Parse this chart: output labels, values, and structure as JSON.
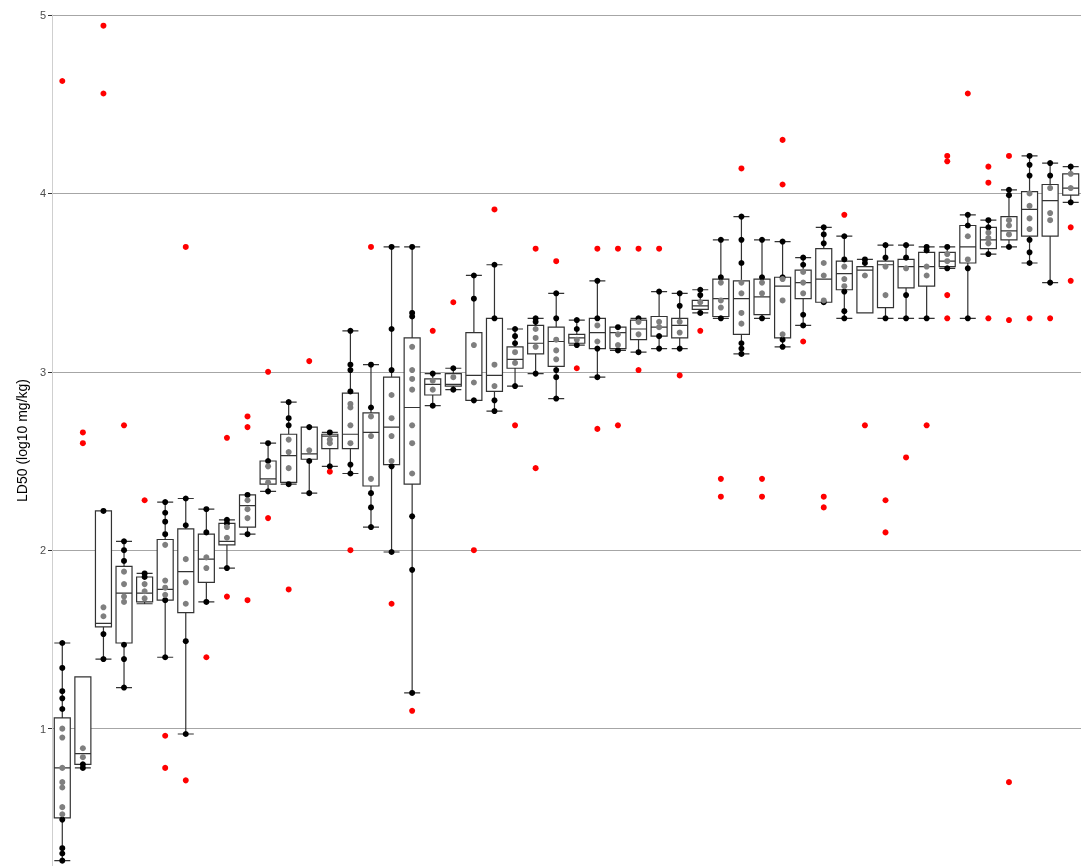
{
  "chart_data": {
    "type": "box",
    "ylabel": "LD50 (log10 mg/kg)",
    "categories": [
      null,
      null,
      null,
      null,
      null,
      null,
      null,
      null,
      null,
      null,
      null,
      null,
      null,
      null,
      null,
      null,
      null,
      null,
      null,
      null,
      null,
      null,
      null,
      null,
      null,
      null,
      null,
      null,
      null,
      null,
      null,
      null,
      null,
      null,
      null,
      null,
      null,
      null,
      null,
      null,
      null,
      null,
      null,
      null,
      null,
      null,
      null,
      null,
      null,
      null
    ],
    "ylim": [
      0.23,
      5
    ],
    "yticks": [
      1,
      2,
      3,
      4,
      5
    ],
    "grid": "y",
    "tick_labels": "y",
    "marker": "circle",
    "series": [
      {
        "color": "#333333",
        "boxes": [
          {
            "low": 0.26,
            "q1": 0.5,
            "median": 0.78,
            "q3": 1.06,
            "high": 1.48
          },
          {
            "low": 0.78,
            "q1": 0.8,
            "median": 0.86,
            "q3": 1.29,
            "high": 1.29
          },
          {
            "low": 1.39,
            "q1": 1.57,
            "median": 1.59,
            "q3": 2.22,
            "high": 2.22
          },
          {
            "low": 1.23,
            "q1": 1.48,
            "median": 1.76,
            "q3": 1.91,
            "high": 2.05
          },
          {
            "low": 1.7,
            "q1": 1.71,
            "median": 1.76,
            "q3": 1.85,
            "high": 1.87
          },
          {
            "low": 1.4,
            "q1": 1.72,
            "median": 1.78,
            "q3": 2.06,
            "high": 2.27
          },
          {
            "low": 0.97,
            "q1": 1.65,
            "median": 1.88,
            "q3": 2.12,
            "high": 2.29
          },
          {
            "low": 1.71,
            "q1": 1.82,
            "median": 1.95,
            "q3": 2.09,
            "high": 2.23
          },
          {
            "low": 1.9,
            "q1": 2.03,
            "median": 2.05,
            "q3": 2.15,
            "high": 2.17
          },
          {
            "low": 2.09,
            "q1": 2.13,
            "median": 2.25,
            "q3": 2.31,
            "high": 2.31
          },
          {
            "low": 2.33,
            "q1": 2.37,
            "median": 2.4,
            "q3": 2.5,
            "high": 2.6
          },
          {
            "low": 2.37,
            "q1": 2.38,
            "median": 2.53,
            "q3": 2.65,
            "high": 2.83
          },
          {
            "low": 2.32,
            "q1": 2.51,
            "median": 2.54,
            "q3": 2.69,
            "high": 2.69
          },
          {
            "low": 2.47,
            "q1": 2.57,
            "median": 2.64,
            "q3": 2.65,
            "high": 2.66
          },
          {
            "low": 2.43,
            "q1": 2.57,
            "median": 2.65,
            "q3": 2.88,
            "high": 3.23
          },
          {
            "low": 2.13,
            "q1": 2.36,
            "median": 2.66,
            "q3": 2.77,
            "high": 3.04
          },
          {
            "low": 1.99,
            "q1": 2.48,
            "median": 2.69,
            "q3": 2.97,
            "high": 3.7
          },
          {
            "low": 1.2,
            "q1": 2.37,
            "median": 2.8,
            "q3": 3.19,
            "high": 3.7
          },
          {
            "low": 2.81,
            "q1": 2.87,
            "median": 2.93,
            "q3": 2.96,
            "high": 2.99
          },
          {
            "low": 2.9,
            "q1": 2.92,
            "median": 2.93,
            "q3": 2.99,
            "high": 3.02
          },
          {
            "low": 2.84,
            "q1": 2.84,
            "median": 2.98,
            "q3": 3.22,
            "high": 3.54
          },
          {
            "low": 2.78,
            "q1": 2.89,
            "median": 2.98,
            "q3": 3.3,
            "high": 3.6
          },
          {
            "low": 2.92,
            "q1": 3.02,
            "median": 3.07,
            "q3": 3.14,
            "high": 3.24
          },
          {
            "low": 2.99,
            "q1": 3.1,
            "median": 3.16,
            "q3": 3.26,
            "high": 3.3
          },
          {
            "low": 2.85,
            "q1": 3.03,
            "median": 3.17,
            "q3": 3.25,
            "high": 3.44
          },
          {
            "low": 3.15,
            "q1": 3.16,
            "median": 3.19,
            "q3": 3.21,
            "high": 3.29
          },
          {
            "low": 2.97,
            "q1": 3.13,
            "median": 3.22,
            "q3": 3.3,
            "high": 3.51
          },
          {
            "low": 3.12,
            "q1": 3.13,
            "median": 3.22,
            "q3": 3.25,
            "high": 3.25
          },
          {
            "low": 3.11,
            "q1": 3.18,
            "median": 3.24,
            "q3": 3.29,
            "high": 3.3
          },
          {
            "low": 3.13,
            "q1": 3.2,
            "median": 3.25,
            "q3": 3.31,
            "high": 3.45
          },
          {
            "low": 3.13,
            "q1": 3.19,
            "median": 3.26,
            "q3": 3.3,
            "high": 3.44
          },
          {
            "low": 3.33,
            "q1": 3.35,
            "median": 3.37,
            "q3": 3.4,
            "high": 3.46
          },
          {
            "low": 3.3,
            "q1": 3.31,
            "median": 3.41,
            "q3": 3.52,
            "high": 3.74
          },
          {
            "low": 3.1,
            "q1": 3.21,
            "median": 3.41,
            "q3": 3.51,
            "high": 3.87
          },
          {
            "low": 3.3,
            "q1": 3.32,
            "median": 3.42,
            "q3": 3.52,
            "high": 3.74
          },
          {
            "low": 3.14,
            "q1": 3.19,
            "median": 3.48,
            "q3": 3.53,
            "high": 3.73
          },
          {
            "low": 3.26,
            "q1": 3.41,
            "median": 3.5,
            "q3": 3.57,
            "high": 3.64
          },
          {
            "low": 3.39,
            "q1": 3.39,
            "median": 3.52,
            "q3": 3.69,
            "high": 3.81
          },
          {
            "low": 3.3,
            "q1": 3.46,
            "median": 3.55,
            "q3": 3.62,
            "high": 3.76
          },
          {
            "low": 3.33,
            "q1": 3.33,
            "median": 3.57,
            "q3": 3.59,
            "high": 3.63
          },
          {
            "low": 3.3,
            "q1": 3.36,
            "median": 3.6,
            "q3": 3.62,
            "high": 3.71
          },
          {
            "low": 3.3,
            "q1": 3.47,
            "median": 3.59,
            "q3": 3.63,
            "high": 3.71
          },
          {
            "low": 3.3,
            "q1": 3.48,
            "median": 3.59,
            "q3": 3.67,
            "high": 3.7
          },
          {
            "low": 3.58,
            "q1": 3.59,
            "median": 3.62,
            "q3": 3.67,
            "high": 3.7
          },
          {
            "low": 3.3,
            "q1": 3.61,
            "median": 3.7,
            "q3": 3.82,
            "high": 3.88
          },
          {
            "low": 3.66,
            "q1": 3.69,
            "median": 3.74,
            "q3": 3.81,
            "high": 3.85
          },
          {
            "low": 3.7,
            "q1": 3.74,
            "median": 3.79,
            "q3": 3.87,
            "high": 4.02
          },
          {
            "low": 3.61,
            "q1": 3.76,
            "median": 3.91,
            "q3": 4.01,
            "high": 4.21
          },
          {
            "low": 3.5,
            "q1": 3.76,
            "median": 3.96,
            "q3": 4.05,
            "high": 4.17
          },
          {
            "low": 3.95,
            "q1": 3.99,
            "median": 4.03,
            "q3": 4.11,
            "high": 4.15
          }
        ]
      },
      {
        "type": "scatter",
        "color": "#000000",
        "values": [
          1.48,
          0.8,
          2.22,
          2.05,
          1.87,
          2.27,
          2.29,
          2.23,
          2.17,
          2.31,
          2.6,
          2.83,
          2.69,
          2.66,
          3.23,
          3.04,
          3.7,
          3.7,
          2.99,
          3.02,
          3.54,
          3.6,
          3.24,
          3.3,
          3.44,
          3.29,
          3.51,
          3.25,
          3.3,
          3.45,
          3.44,
          3.46,
          3.74,
          3.87,
          3.74,
          3.73,
          3.64,
          3.81,
          3.76,
          3.63,
          3.71,
          3.71,
          3.7,
          3.7,
          3.88,
          3.85,
          4.02,
          4.21,
          4.17,
          4.15
        ]
      },
      {
        "type": "scatter",
        "color": "#000000",
        "values": [
          1.34,
          0.78,
          1.53,
          2.0,
          1.85,
          2.21,
          2.14,
          2.1,
          2.15,
          2.09,
          2.5,
          2.74,
          2.5,
          2.47,
          3.04,
          2.8,
          3.24,
          3.33,
          2.81,
          2.9,
          3.41,
          3.3,
          3.2,
          3.28,
          3.3,
          3.24,
          3.3,
          3.12,
          3.11,
          3.2,
          3.37,
          3.43,
          3.53,
          3.74,
          3.53,
          3.53,
          3.6,
          3.77,
          3.63,
          3.61,
          3.64,
          3.64,
          3.68,
          3.58,
          3.82,
          3.81,
          3.99,
          4.16,
          4.1,
          3.95
        ]
      },
      {
        "type": "scatter",
        "color": "#000000",
        "values": [
          1.21,
          null,
          1.39,
          1.94,
          null,
          2.16,
          1.49,
          1.71,
          1.9,
          null,
          2.33,
          2.7,
          2.32,
          null,
          3.01,
          2.32,
          3.01,
          3.31,
          null,
          null,
          2.84,
          2.84,
          3.16,
          2.99,
          3.01,
          3.15,
          3.13,
          null,
          null,
          3.13,
          3.13,
          3.33,
          3.3,
          3.61,
          3.3,
          3.18,
          3.32,
          3.72,
          3.45,
          null,
          3.3,
          3.43,
          3.3,
          null,
          3.58,
          3.66,
          3.7,
          4.1,
          3.5,
          null
        ]
      },
      {
        "type": "scatter",
        "color": "#000000",
        "values": [
          1.17,
          null,
          null,
          1.47,
          null,
          2.09,
          0.97,
          null,
          null,
          null,
          null,
          2.37,
          null,
          null,
          2.89,
          2.24,
          2.47,
          2.19,
          null,
          null,
          null,
          2.78,
          2.92,
          null,
          2.97,
          null,
          2.97,
          null,
          null,
          null,
          null,
          null,
          null,
          3.16,
          null,
          3.14,
          3.26,
          3.39,
          3.34,
          null,
          null,
          3.3,
          null,
          null,
          3.3,
          null,
          null,
          3.74,
          null,
          null
        ]
      },
      {
        "type": "scatter",
        "color": "#000000",
        "values": [
          1.11,
          null,
          null,
          1.39,
          null,
          1.72,
          null,
          null,
          null,
          null,
          null,
          null,
          null,
          null,
          2.48,
          2.13,
          1.99,
          1.89,
          null,
          null,
          null,
          null,
          null,
          null,
          2.85,
          null,
          null,
          null,
          null,
          null,
          null,
          null,
          null,
          3.13,
          null,
          null,
          null,
          null,
          3.3,
          null,
          null,
          null,
          null,
          null,
          null,
          null,
          null,
          3.67,
          null,
          null
        ]
      },
      {
        "type": "scatter",
        "color": "#000000",
        "values": [
          0.49,
          null,
          null,
          1.23,
          null,
          1.4,
          null,
          null,
          null,
          null,
          null,
          null,
          null,
          null,
          2.43,
          null,
          null,
          1.2,
          null,
          null,
          null,
          null,
          null,
          null,
          null,
          null,
          null,
          null,
          null,
          null,
          null,
          null,
          null,
          3.1,
          null,
          null,
          null,
          null,
          null,
          null,
          null,
          null,
          null,
          null,
          null,
          null,
          null,
          3.61,
          null,
          null
        ]
      },
      {
        "type": "scatter",
        "color": "#000000",
        "values": [
          0.33,
          null,
          null,
          null,
          null,
          null,
          null,
          null,
          null,
          null,
          null,
          null,
          null,
          null,
          null,
          null,
          null,
          null,
          null,
          null,
          null,
          null,
          null,
          null,
          null,
          null,
          null,
          null,
          null,
          null,
          null,
          null,
          null,
          null,
          null,
          null,
          null,
          null,
          null,
          null,
          null,
          null,
          null,
          null,
          null,
          null,
          null,
          null,
          null,
          null
        ]
      },
      {
        "type": "scatter",
        "color": "#000000",
        "values": [
          0.3,
          null,
          null,
          null,
          null,
          null,
          null,
          null,
          null,
          null,
          null,
          null,
          null,
          null,
          null,
          null,
          null,
          null,
          null,
          null,
          null,
          null,
          null,
          null,
          null,
          null,
          null,
          null,
          null,
          null,
          null,
          null,
          null,
          null,
          null,
          null,
          null,
          null,
          null,
          null,
          null,
          null,
          null,
          null,
          null,
          null,
          null,
          null,
          null,
          null
        ]
      },
      {
        "type": "scatter",
        "color": "#000000",
        "values": [
          0.26,
          null,
          null,
          null,
          null,
          null,
          null,
          null,
          null,
          null,
          null,
          null,
          null,
          null,
          null,
          null,
          null,
          null,
          null,
          null,
          null,
          null,
          null,
          null,
          null,
          null,
          null,
          null,
          null,
          null,
          null,
          null,
          null,
          null,
          null,
          null,
          null,
          null,
          null,
          null,
          null,
          null,
          null,
          null,
          null,
          null,
          null,
          null,
          null,
          null
        ]
      },
      {
        "type": "scatter",
        "color": "#7f7f7f",
        "values": [
          1.0,
          0.89,
          1.68,
          1.88,
          1.81,
          2.03,
          1.95,
          1.96,
          2.13,
          2.28,
          2.47,
          2.62,
          2.56,
          2.62,
          2.82,
          2.75,
          2.87,
          3.14,
          2.95,
          2.97,
          3.15,
          3.04,
          3.11,
          3.24,
          3.18,
          3.18,
          3.26,
          3.21,
          3.28,
          3.28,
          3.28,
          3.39,
          3.5,
          3.5,
          3.5,
          3.52,
          3.56,
          3.61,
          3.59,
          3.54,
          3.59,
          3.58,
          3.59,
          3.66,
          3.76,
          3.78,
          3.85,
          4.0,
          4.03,
          4.11
        ]
      },
      {
        "type": "scatter",
        "color": "#7f7f7f",
        "values": [
          0.95,
          0.84,
          1.63,
          1.81,
          1.77,
          1.83,
          1.82,
          1.9,
          2.07,
          2.23,
          2.38,
          2.55,
          null,
          2.6,
          2.8,
          2.64,
          2.74,
          3.01,
          2.9,
          null,
          2.94,
          2.92,
          3.05,
          3.19,
          3.12,
          null,
          3.17,
          3.15,
          3.21,
          3.25,
          3.22,
          null,
          3.4,
          3.44,
          3.44,
          3.4,
          3.5,
          3.54,
          3.52,
          null,
          3.43,
          null,
          3.54,
          3.62,
          3.63,
          3.75,
          3.82,
          3.93,
          3.89,
          4.03
        ]
      },
      {
        "type": "scatter",
        "color": "#7f7f7f",
        "values": [
          0.78,
          null,
          null,
          1.74,
          1.73,
          1.79,
          1.7,
          null,
          null,
          2.18,
          null,
          2.46,
          null,
          null,
          2.7,
          2.4,
          2.64,
          2.96,
          null,
          null,
          null,
          null,
          null,
          3.14,
          3.07,
          null,
          null,
          null,
          null,
          null,
          null,
          null,
          3.36,
          3.33,
          null,
          3.21,
          3.44,
          3.4,
          3.48,
          null,
          null,
          null,
          null,
          null,
          null,
          3.72,
          3.77,
          3.86,
          3.85,
          null
        ]
      },
      {
        "type": "scatter",
        "color": "#7f7f7f",
        "values": [
          0.7,
          null,
          null,
          1.71,
          null,
          1.75,
          null,
          null,
          null,
          null,
          null,
          null,
          null,
          null,
          2.6,
          null,
          2.5,
          2.9,
          null,
          null,
          null,
          null,
          null,
          null,
          null,
          null,
          null,
          null,
          null,
          null,
          null,
          null,
          null,
          3.27,
          null,
          null,
          null,
          null,
          null,
          null,
          null,
          null,
          null,
          null,
          null,
          null,
          null,
          3.8,
          null,
          null
        ]
      },
      {
        "type": "scatter",
        "color": "#7f7f7f",
        "values": [
          0.67,
          null,
          null,
          null,
          null,
          null,
          null,
          null,
          null,
          null,
          null,
          null,
          null,
          null,
          null,
          null,
          null,
          2.7,
          null,
          null,
          null,
          null,
          null,
          null,
          null,
          null,
          null,
          null,
          null,
          null,
          null,
          null,
          null,
          null,
          null,
          null,
          null,
          null,
          null,
          null,
          null,
          null,
          null,
          null,
          null,
          null,
          null,
          null,
          null,
          null
        ]
      },
      {
        "type": "scatter",
        "color": "#7f7f7f",
        "values": [
          0.56,
          null,
          null,
          null,
          null,
          null,
          null,
          null,
          null,
          null,
          null,
          null,
          null,
          null,
          null,
          null,
          null,
          2.6,
          null,
          null,
          null,
          null,
          null,
          null,
          null,
          null,
          null,
          null,
          null,
          null,
          null,
          null,
          null,
          null,
          null,
          null,
          null,
          null,
          null,
          null,
          null,
          null,
          null,
          null,
          null,
          null,
          null,
          null,
          null,
          null
        ]
      },
      {
        "type": "scatter",
        "color": "#7f7f7f",
        "values": [
          0.52,
          null,
          null,
          null,
          null,
          null,
          null,
          null,
          null,
          null,
          null,
          null,
          null,
          null,
          null,
          null,
          null,
          2.43,
          null,
          null,
          null,
          null,
          null,
          null,
          null,
          null,
          null,
          null,
          null,
          null,
          null,
          null,
          null,
          null,
          null,
          null,
          null,
          null,
          null,
          null,
          null,
          null,
          null,
          null,
          null,
          null,
          null,
          null,
          null,
          null
        ]
      },
      {
        "type": "scatter",
        "color": "#ff0000",
        "values": [
          4.63,
          2.66,
          4.94,
          2.7,
          2.28,
          0.96,
          3.7,
          1.4,
          2.63,
          2.75,
          3.0,
          1.78,
          3.06,
          2.44,
          2.0,
          3.7,
          1.7,
          1.1,
          3.23,
          3.39,
          2.0,
          3.91,
          2.7,
          3.69,
          3.62,
          3.02,
          3.69,
          3.69,
          3.69,
          3.69,
          2.98,
          3.23,
          2.4,
          4.14,
          2.4,
          4.3,
          3.17,
          2.3,
          3.88,
          2.7,
          2.28,
          2.52,
          2.7,
          4.21,
          4.56,
          4.15,
          4.21,
          3.3,
          3.3,
          3.81
        ]
      },
      {
        "type": "scatter",
        "color": "#ff0000",
        "values": [
          null,
          2.6,
          4.56,
          null,
          null,
          0.78,
          0.71,
          null,
          1.74,
          2.69,
          2.18,
          null,
          null,
          null,
          null,
          null,
          null,
          null,
          null,
          null,
          null,
          null,
          null,
          2.46,
          null,
          null,
          2.68,
          2.7,
          3.01,
          null,
          null,
          null,
          2.3,
          null,
          2.3,
          4.05,
          null,
          2.24,
          null,
          null,
          2.1,
          null,
          null,
          4.18,
          null,
          4.06,
          3.29,
          null,
          null,
          3.51
        ]
      },
      {
        "type": "scatter",
        "color": "#ff0000",
        "values": [
          null,
          null,
          null,
          null,
          null,
          null,
          null,
          null,
          null,
          1.72,
          null,
          null,
          null,
          null,
          null,
          null,
          null,
          null,
          null,
          null,
          null,
          null,
          null,
          null,
          null,
          null,
          null,
          null,
          null,
          null,
          null,
          null,
          null,
          null,
          null,
          null,
          null,
          null,
          null,
          null,
          null,
          null,
          null,
          3.43,
          null,
          3.3,
          0.7,
          null,
          null,
          null
        ]
      },
      {
        "type": "scatter",
        "color": "#ff0000",
        "values": [
          null,
          null,
          null,
          null,
          null,
          null,
          null,
          null,
          null,
          null,
          null,
          null,
          null,
          null,
          null,
          null,
          null,
          null,
          null,
          null,
          null,
          null,
          null,
          null,
          null,
          null,
          null,
          null,
          null,
          null,
          null,
          null,
          null,
          null,
          null,
          null,
          null,
          null,
          null,
          null,
          null,
          null,
          null,
          3.3,
          null,
          null,
          null,
          null,
          null,
          null
        ]
      }
    ]
  }
}
